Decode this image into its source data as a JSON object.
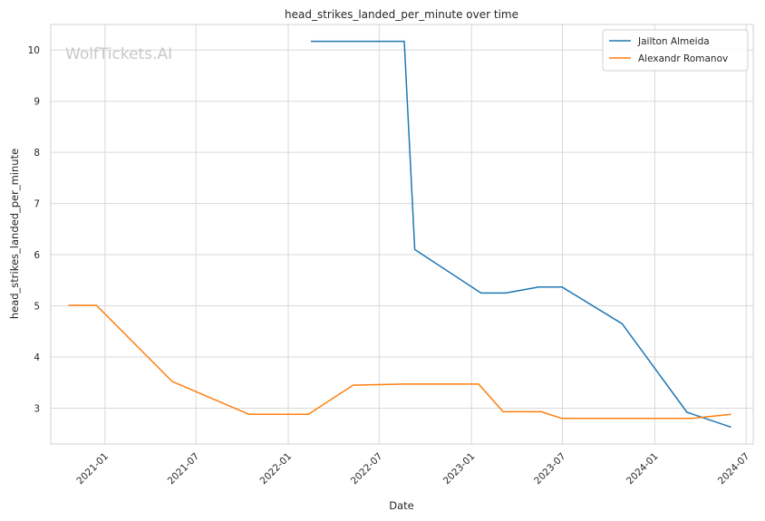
{
  "watermark": "WolfTickets.AI",
  "chart_data": {
    "type": "line",
    "title": "head_strikes_landed_per_minute over time",
    "xlabel": "Date",
    "ylabel": "head_strikes_landed_per_minute",
    "x_axis": "date",
    "xlim": [
      "2020-09-15",
      "2024-07-15"
    ],
    "ylim": [
      2.3,
      10.5
    ],
    "x_ticks": [
      "2021-01",
      "2021-07",
      "2022-01",
      "2022-07",
      "2023-01",
      "2023-07",
      "2024-01",
      "2024-07"
    ],
    "y_ticks": [
      3,
      4,
      5,
      6,
      7,
      8,
      9,
      10
    ],
    "grid": true,
    "legend": "top-right",
    "series": [
      {
        "name": "Jailton Almeida",
        "color": "#1f77b4",
        "points": [
          {
            "x": "2022-02-15",
            "y": 10.17
          },
          {
            "x": "2022-08-20",
            "y": 10.17
          },
          {
            "x": "2022-09-10",
            "y": 6.1
          },
          {
            "x": "2023-01-20",
            "y": 5.25
          },
          {
            "x": "2023-03-10",
            "y": 5.25
          },
          {
            "x": "2023-05-15",
            "y": 5.37
          },
          {
            "x": "2023-06-30",
            "y": 5.37
          },
          {
            "x": "2023-10-28",
            "y": 4.65
          },
          {
            "x": "2024-03-05",
            "y": 2.92
          },
          {
            "x": "2024-06-01",
            "y": 2.63
          }
        ]
      },
      {
        "name": "Alexandr Romanov",
        "color": "#ff7f0e",
        "points": [
          {
            "x": "2020-10-20",
            "y": 5.01
          },
          {
            "x": "2020-12-15",
            "y": 5.01
          },
          {
            "x": "2021-05-15",
            "y": 3.52
          },
          {
            "x": "2021-10-15",
            "y": 2.88
          },
          {
            "x": "2022-02-10",
            "y": 2.88
          },
          {
            "x": "2022-05-10",
            "y": 3.45
          },
          {
            "x": "2022-08-20",
            "y": 3.47
          },
          {
            "x": "2023-01-15",
            "y": 3.47
          },
          {
            "x": "2023-03-05",
            "y": 2.93
          },
          {
            "x": "2023-05-20",
            "y": 2.93
          },
          {
            "x": "2023-06-30",
            "y": 2.8
          },
          {
            "x": "2024-03-15",
            "y": 2.8
          },
          {
            "x": "2024-06-01",
            "y": 2.88
          }
        ]
      }
    ]
  }
}
